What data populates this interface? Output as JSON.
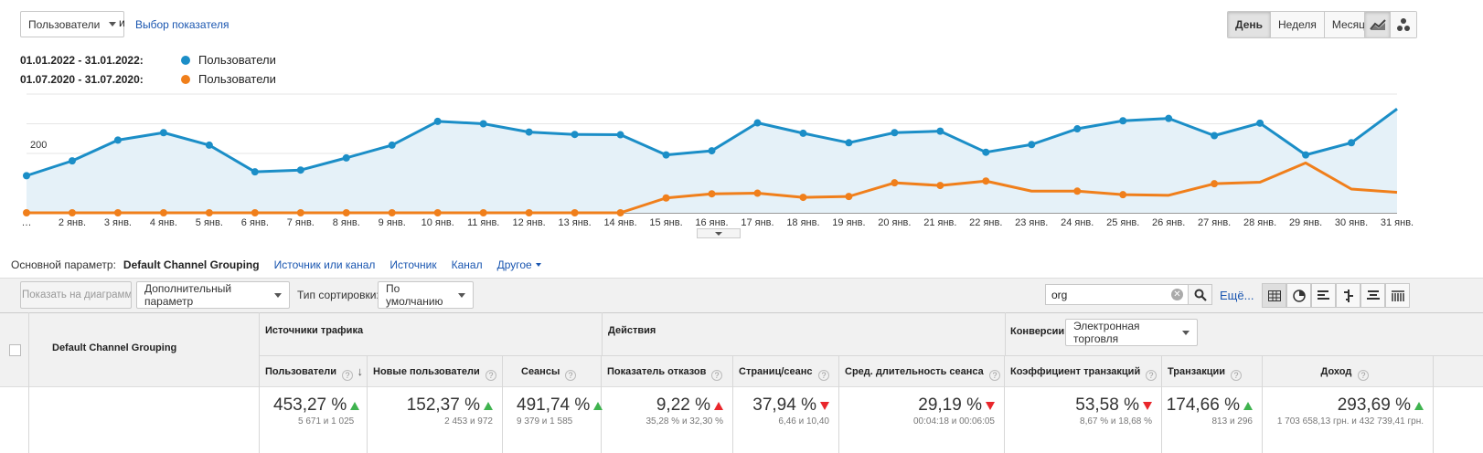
{
  "toolbar": {
    "metric_select": "Пользователи",
    "and_label": "и",
    "choose_metric": "Выбор показателя",
    "period_buttons": [
      "День",
      "Неделя",
      "Месяц"
    ],
    "active_period": "День"
  },
  "legend": [
    {
      "range": "01.01.2022 - 31.01.2022:",
      "series": "Пользователи",
      "color": "#1b8ec7"
    },
    {
      "range": "01.07.2020 - 31.07.2020:",
      "series": "Пользователи",
      "color": "#f07f1b"
    }
  ],
  "chart_data": {
    "type": "line",
    "x": [
      "…",
      "2 янв.",
      "3 янв.",
      "4 янв.",
      "5 янв.",
      "6 янв.",
      "7 янв.",
      "8 янв.",
      "9 янв.",
      "10 янв.",
      "11 янв.",
      "12 янв.",
      "13 янв.",
      "14 янв.",
      "15 янв.",
      "16 янв.",
      "17 янв.",
      "18 янв.",
      "19 янв.",
      "20 янв.",
      "21 янв.",
      "22 янв.",
      "23 янв.",
      "24 янв.",
      "25 янв.",
      "26 янв.",
      "27 янв.",
      "28 янв.",
      "29 янв.",
      "30 янв.",
      "31 янв."
    ],
    "yticks": [
      200,
      400
    ],
    "ylim": [
      0,
      400
    ],
    "series": [
      {
        "name": "Пользователи",
        "color": "#1b8ec7",
        "area": true,
        "values": [
          125,
          175,
          245,
          270,
          228,
          138,
          144,
          185,
          228,
          308,
          300,
          272,
          264,
          263,
          195,
          209,
          303,
          268,
          236,
          270,
          275,
          204,
          230,
          283,
          310,
          318,
          260,
          302,
          195,
          236,
          350
        ]
      },
      {
        "name": "Пользователи",
        "color": "#f07f1b",
        "area": false,
        "values": [
          0,
          0,
          0,
          0,
          0,
          0,
          0,
          0,
          0,
          0,
          0,
          0,
          0,
          0,
          50,
          64,
          66,
          52,
          55,
          101,
          92,
          107,
          73,
          73,
          61,
          59,
          98,
          103,
          168,
          80,
          69
        ]
      }
    ]
  },
  "dimension_bar": {
    "label": "Основной параметр:",
    "active": "Default Channel Grouping",
    "options": [
      "Источник или канал",
      "Источник",
      "Канал",
      "Другое"
    ]
  },
  "controls": {
    "plot_button": "Показать на диаграмме",
    "secondary_dim": "Дополнительный параметр",
    "sort_label": "Тип сортировки:",
    "sort_value": "По умолчанию",
    "search_value": "org",
    "more_link": "Ещё..."
  },
  "table": {
    "dim_header": "Default Channel Grouping",
    "groups": {
      "acquisition": "Источники трафика",
      "behavior": "Действия",
      "conversions": "Конверсии",
      "conversion_select": "Электронная торговля"
    },
    "columns": [
      {
        "label": "Пользователи",
        "big": "453,27 %",
        "sub": "5 671 и 1 025",
        "trend": "up-green"
      },
      {
        "label": "Новые пользователи",
        "big": "152,37 %",
        "sub": "2 453 и 972",
        "trend": "up-green"
      },
      {
        "label": "Сеансы",
        "big": "491,74 %",
        "sub": "9 379 и 1 585",
        "trend": "up-green"
      },
      {
        "label": "Показатель отказов",
        "big": "9,22 %",
        "sub": "35,28 % и 32,30 %",
        "trend": "up-red"
      },
      {
        "label": "Страниц/сеанс",
        "big": "37,94 %",
        "sub": "6,46 и 10,40",
        "trend": "down-red"
      },
      {
        "label": "Сред. длительность сеанса",
        "big": "29,19 %",
        "sub": "00:04:18 и 00:06:05",
        "trend": "down-red"
      },
      {
        "label": "Коэффициент транзакций",
        "big": "53,58 %",
        "sub": "8,67 % и 18,68 %",
        "trend": "down-red"
      },
      {
        "label": "Транзакции",
        "big": "174,66 %",
        "sub": "813 и 296",
        "trend": "up-green"
      },
      {
        "label": "Доход",
        "big": "293,69 %",
        "sub": "1 703 658,13 грн. и 432 739,41 грн.",
        "trend": "up-green"
      }
    ]
  }
}
